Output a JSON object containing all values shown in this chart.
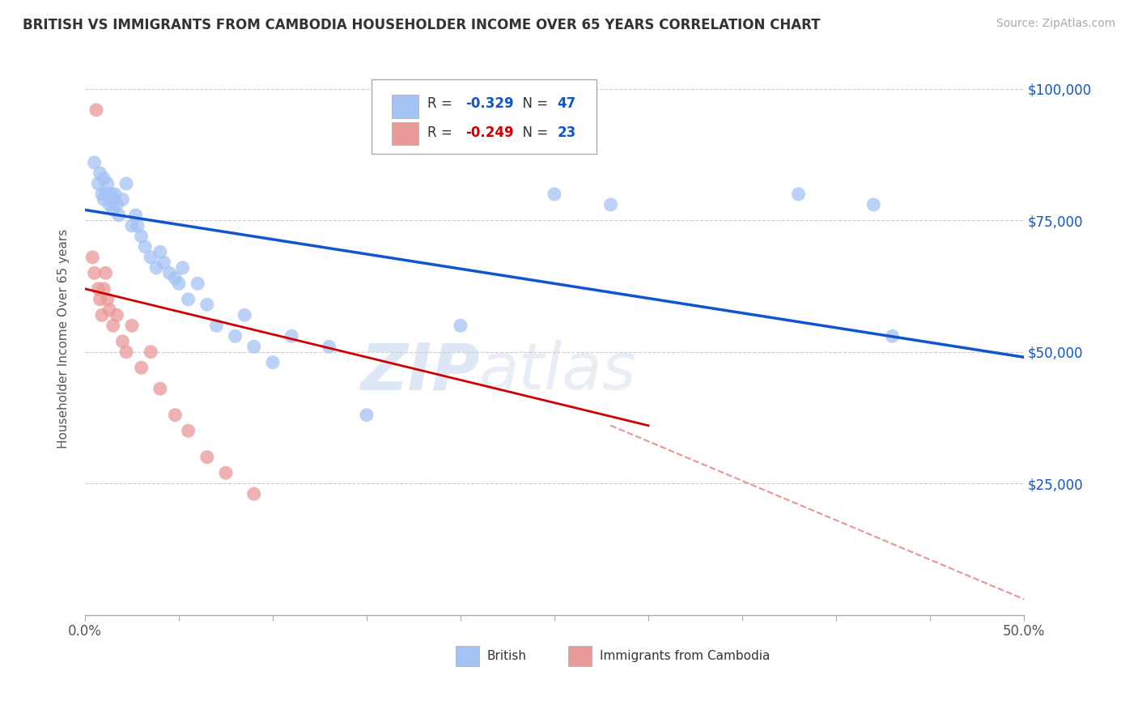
{
  "title": "BRITISH VS IMMIGRANTS FROM CAMBODIA HOUSEHOLDER INCOME OVER 65 YEARS CORRELATION CHART",
  "source": "Source: ZipAtlas.com",
  "ylabel": "Householder Income Over 65 years",
  "xmin": 0.0,
  "xmax": 0.5,
  "ymin": 0,
  "ymax": 105000,
  "yticks": [
    0,
    25000,
    50000,
    75000,
    100000
  ],
  "ytick_labels": [
    "",
    "$25,000",
    "$50,000",
    "$75,000",
    "$100,000"
  ],
  "watermark_zip": "ZIP",
  "watermark_atlas": "atlas",
  "legend_british": "British",
  "legend_cambodia": "Immigrants from Cambodia",
  "british_color": "#a4c2f4",
  "cambodia_color": "#ea9999",
  "british_line_color": "#1155cc",
  "cambodia_line_color": "#cc0000",
  "dashed_line_color": "#e06666",
  "british_R": "-0.329",
  "british_N": "47",
  "cambodia_R": "-0.249",
  "cambodia_N": "23",
  "british_x": [
    0.005,
    0.007,
    0.008,
    0.009,
    0.01,
    0.01,
    0.011,
    0.012,
    0.013,
    0.014,
    0.015,
    0.015,
    0.016,
    0.017,
    0.018,
    0.02,
    0.022,
    0.025,
    0.027,
    0.028,
    0.03,
    0.032,
    0.035,
    0.038,
    0.04,
    0.042,
    0.045,
    0.048,
    0.05,
    0.052,
    0.055,
    0.06,
    0.065,
    0.07,
    0.08,
    0.085,
    0.09,
    0.1,
    0.11,
    0.13,
    0.15,
    0.2,
    0.25,
    0.28,
    0.38,
    0.42,
    0.43
  ],
  "british_y": [
    86000,
    82000,
    84000,
    80000,
    83000,
    79000,
    80000,
    82000,
    78000,
    80000,
    79000,
    77000,
    80000,
    78000,
    76000,
    79000,
    82000,
    74000,
    76000,
    74000,
    72000,
    70000,
    68000,
    66000,
    69000,
    67000,
    65000,
    64000,
    63000,
    66000,
    60000,
    63000,
    59000,
    55000,
    53000,
    57000,
    51000,
    48000,
    53000,
    51000,
    38000,
    55000,
    80000,
    78000,
    80000,
    78000,
    53000
  ],
  "cambodia_x": [
    0.004,
    0.005,
    0.006,
    0.007,
    0.008,
    0.009,
    0.01,
    0.011,
    0.012,
    0.013,
    0.015,
    0.017,
    0.02,
    0.022,
    0.025,
    0.03,
    0.035,
    0.04,
    0.048,
    0.055,
    0.065,
    0.075,
    0.09
  ],
  "cambodia_y": [
    68000,
    65000,
    96000,
    62000,
    60000,
    57000,
    62000,
    65000,
    60000,
    58000,
    55000,
    57000,
    52000,
    50000,
    55000,
    47000,
    50000,
    43000,
    38000,
    35000,
    30000,
    27000,
    23000
  ],
  "british_trend_x": [
    0.0,
    0.5
  ],
  "british_trend_y": [
    77000,
    49000
  ],
  "cambodia_trend_x": [
    0.0,
    0.3
  ],
  "cambodia_trend_y": [
    62000,
    36000
  ],
  "dashed_trend_x": [
    0.28,
    0.5
  ],
  "dashed_trend_y": [
    36000,
    3000
  ],
  "xtick_positions": [
    0.0,
    0.05,
    0.1,
    0.15,
    0.2,
    0.25,
    0.3,
    0.35,
    0.4,
    0.45,
    0.5
  ],
  "xtick_show": [
    true,
    false,
    false,
    false,
    false,
    false,
    false,
    false,
    false,
    false,
    true
  ]
}
